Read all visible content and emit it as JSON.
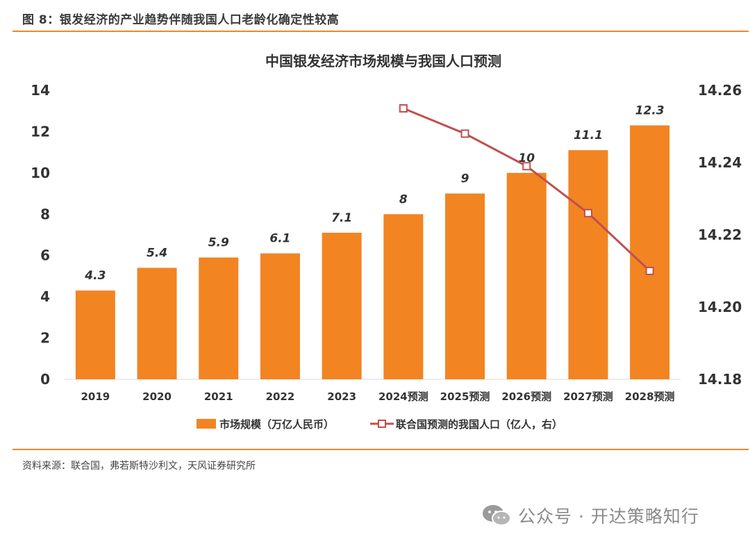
{
  "figure_title": "图 8：银发经济的产业趋势伴随我国人口老龄化确定性较高",
  "source_text": "资料来源：联合国，弗若斯特沙利文，天风证券研究所",
  "watermark": "公众号 · 开达策略知行",
  "colors": {
    "bar": "#f28422",
    "line": "#c0504d",
    "rule": "#f0862a"
  },
  "chart_data": {
    "type": "bar+line",
    "title": "中国银发经济市场规模与我国人口预测",
    "categories": [
      "2019",
      "2020",
      "2021",
      "2022",
      "2023",
      "2024预测",
      "2025预测",
      "2026预测",
      "2027预测",
      "2028预测"
    ],
    "series": [
      {
        "name": "市场规模（万亿人民币）",
        "type": "bar",
        "axis": "left",
        "values": [
          4.3,
          5.4,
          5.9,
          6.1,
          7.1,
          8,
          9,
          10,
          11.1,
          12.3
        ],
        "labels": [
          "4.3",
          "5.4",
          "5.9",
          "6.1",
          "7.1",
          "8",
          "9",
          "10",
          "11.1",
          "12.3"
        ]
      },
      {
        "name": "联合国预测的我国人口（亿人，右）",
        "type": "line",
        "axis": "right",
        "values": [
          null,
          null,
          null,
          null,
          null,
          14.255,
          14.248,
          14.239,
          14.226,
          14.21
        ]
      }
    ],
    "y_left": {
      "min": 0,
      "max": 14,
      "ticks": [
        "0",
        "2",
        "4",
        "6",
        "8",
        "10",
        "12",
        "14"
      ]
    },
    "y_right": {
      "min": 14.18,
      "max": 14.26,
      "ticks": [
        "14.18",
        "14.20",
        "14.22",
        "14.24",
        "14.26"
      ]
    },
    "legend_position": "bottom"
  }
}
